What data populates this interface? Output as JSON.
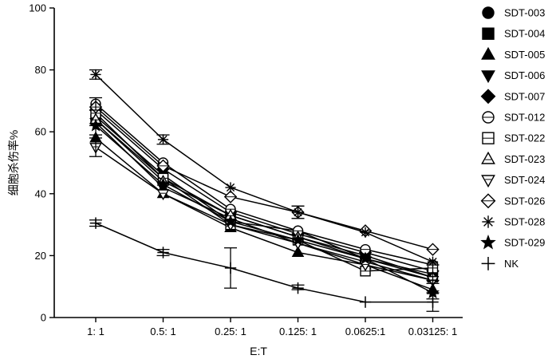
{
  "chart_data": {
    "type": "line",
    "title": "",
    "xlabel": "E:T",
    "ylabel": "细胞杀伤率%",
    "ylim": [
      0,
      100
    ],
    "yticks": [
      0,
      20,
      40,
      60,
      80,
      100
    ],
    "categories": [
      "1: 1",
      "0.5: 1",
      "0.25: 1",
      "0.125: 1",
      "0.0625:1",
      "0.03125: 1"
    ],
    "legend_position": "right",
    "series": [
      {
        "name": "SDT-003",
        "marker": "circle-filled",
        "values": [
          65,
          46,
          31,
          28,
          19,
          14
        ]
      },
      {
        "name": "SDT-004",
        "marker": "square-filled",
        "values": [
          64,
          45,
          33,
          26,
          20,
          13
        ]
      },
      {
        "name": "SDT-005",
        "marker": "triangle-up-filled",
        "values": [
          58,
          40,
          29,
          21,
          17,
          9
        ]
      },
      {
        "name": "SDT-006",
        "marker": "triangle-down-filled",
        "values": [
          63,
          42,
          32,
          24,
          18,
          12
        ]
      },
      {
        "name": "SDT-007",
        "marker": "diamond-filled",
        "values": [
          67,
          48,
          34,
          27,
          21,
          15
        ]
      },
      {
        "name": "SDT-012",
        "marker": "circle-open",
        "values": [
          69,
          50,
          35,
          28,
          22,
          17
        ]
      },
      {
        "name": "SDT-022",
        "marker": "square-open",
        "values": [
          66,
          45,
          30,
          25,
          15,
          16
        ]
      },
      {
        "name": "SDT-023",
        "marker": "triangle-up-open",
        "values": [
          64,
          44,
          33,
          26,
          19,
          13
        ]
      },
      {
        "name": "SDT-024",
        "marker": "triangle-down-open",
        "values": [
          55,
          40,
          30,
          24,
          17,
          12
        ]
      },
      {
        "name": "SDT-026",
        "marker": "diamond-open",
        "values": [
          68,
          49,
          39,
          34,
          28,
          22
        ]
      },
      {
        "name": "SDT-028",
        "marker": "asterisk",
        "values": [
          78.5,
          57.5,
          42,
          34,
          27.5,
          18
        ]
      },
      {
        "name": "SDT-029",
        "marker": "star-filled",
        "values": [
          62,
          43,
          31,
          25,
          19,
          8
        ]
      },
      {
        "name": "NK",
        "marker": "plus",
        "values": [
          30.5,
          21,
          16,
          9.5,
          5,
          5
        ]
      }
    ],
    "error_bars": [
      {
        "series": "NK",
        "index": 0,
        "low": 29.5,
        "high": 31.5
      },
      {
        "series": "NK",
        "index": 1,
        "low": 20,
        "high": 22
      },
      {
        "series": "NK",
        "index": 2,
        "low": 9.5,
        "high": 22.5
      },
      {
        "series": "NK",
        "index": 3,
        "low": 9,
        "high": 10.5
      },
      {
        "series": "NK",
        "index": 5,
        "low": 2,
        "high": 8
      },
      {
        "series": "SDT-028",
        "index": 0,
        "low": 77,
        "high": 80
      },
      {
        "series": "SDT-028",
        "index": 1,
        "low": 56,
        "high": 59
      },
      {
        "series": "SDT-028",
        "index": 3,
        "low": 32,
        "high": 36
      },
      {
        "series": "SDT-012",
        "index": 0,
        "low": 67,
        "high": 71
      },
      {
        "series": "SDT-024",
        "index": 0,
        "low": 52,
        "high": 58
      },
      {
        "series": "SDT-006",
        "index": 0,
        "low": 59,
        "high": 62
      },
      {
        "series": "SDT-026",
        "index": 3,
        "low": 32,
        "high": 36
      },
      {
        "series": "SDT-003",
        "index": 5,
        "low": 11,
        "high": 17
      },
      {
        "series": "SDT-005",
        "index": 5,
        "low": 6,
        "high": 12
      }
    ]
  }
}
